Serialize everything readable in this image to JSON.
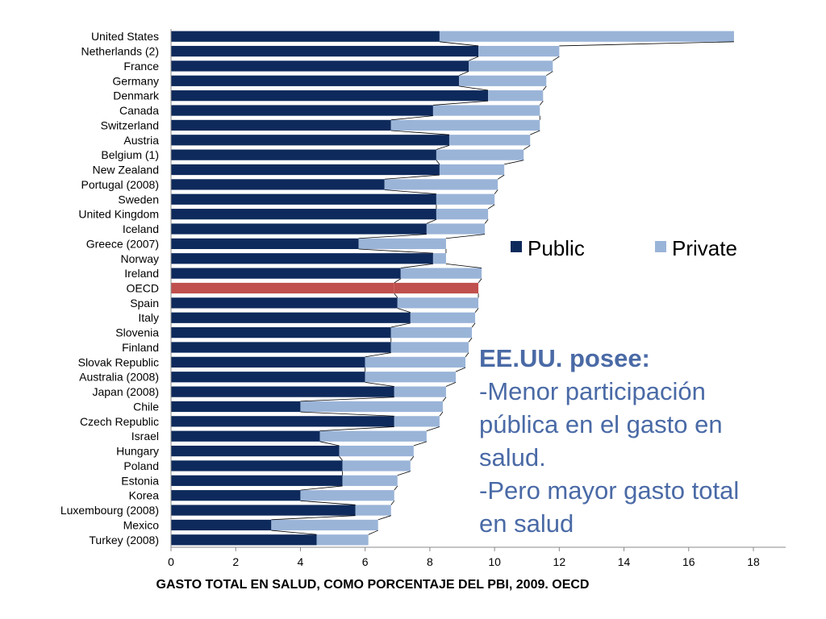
{
  "chart_data": {
    "type": "bar",
    "orientation": "horizontal",
    "stacked": true,
    "xlabel": "GASTO TOTAL EN SALUD, COMO PORCENTAJE DEL PBI, 2009. OECD",
    "xlim": [
      0,
      18
    ],
    "xticks": [
      "0",
      "2",
      "4",
      "6",
      "8",
      "10",
      "12",
      "14",
      "16",
      "18"
    ],
    "grid": false,
    "legend_position": "right",
    "categories": [
      "United States",
      "Netherlands (2)",
      "France",
      "Germany",
      "Denmark",
      "Canada",
      "Switzerland",
      "Austria",
      "Belgium (1)",
      "New Zealand",
      "Portugal (2008)",
      "Sweden",
      "United Kingdom",
      "Iceland",
      "Greece (2007)",
      "Norway",
      "Ireland",
      "OECD",
      "Spain",
      "Italy",
      "Slovenia",
      "Finland",
      "Slovak Republic",
      "Australia (2008)",
      "Japan (2008)",
      "Chile",
      "Czech Republic",
      "Israel",
      "Hungary",
      "Poland",
      "Estonia",
      "Korea",
      "Luxembourg (2008)",
      "Mexico",
      "Turkey (2008)"
    ],
    "highlight_category": "OECD",
    "series": [
      {
        "name": "Public",
        "color": "#0e2a5c",
        "values": [
          8.3,
          9.5,
          9.2,
          8.9,
          9.8,
          8.1,
          6.8,
          8.6,
          8.2,
          8.3,
          6.6,
          8.2,
          8.2,
          7.9,
          5.8,
          8.1,
          7.1,
          6.9,
          7.0,
          7.4,
          6.8,
          6.8,
          6.0,
          6.0,
          6.9,
          4.0,
          6.9,
          4.6,
          5.2,
          5.3,
          5.3,
          4.0,
          5.7,
          3.1,
          4.5
        ]
      },
      {
        "name": "Private",
        "color": "#9ab4d8",
        "values": [
          9.1,
          2.5,
          2.6,
          2.7,
          1.7,
          3.3,
          4.6,
          2.5,
          2.7,
          2.0,
          3.5,
          1.8,
          1.6,
          1.8,
          2.7,
          0.4,
          2.5,
          2.6,
          2.5,
          2.0,
          2.5,
          2.4,
          3.1,
          2.8,
          1.6,
          4.4,
          1.4,
          3.3,
          2.3,
          2.1,
          1.7,
          2.9,
          1.1,
          3.3,
          1.6
        ]
      }
    ],
    "highlight_color": "#c0504d"
  },
  "legend": {
    "public_label": "Public",
    "private_label": "Private"
  },
  "callout": {
    "title": "EE.UU. posee:",
    "lines": [
      "-Menor participación",
      "pública en el gasto en",
      "salud.",
      "-Pero mayor gasto total",
      "en salud"
    ],
    "color": "#4a6aa6"
  }
}
